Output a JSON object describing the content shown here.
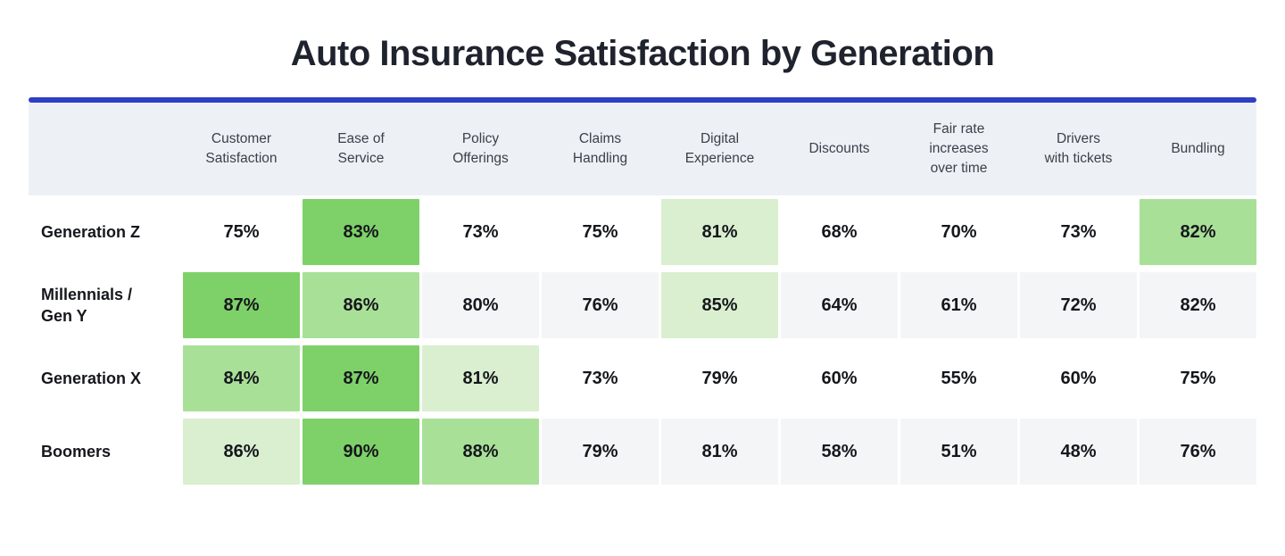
{
  "title": "Auto Insurance Satisfaction by Generation",
  "colors": {
    "accent_rule": "#2f3fc3",
    "header_bg": "#edf1f6",
    "row_stripe": "#f4f5f7",
    "green_rank1": "#7ed169",
    "green_rank2": "#a9e098",
    "green_rank3": "#d9efcf"
  },
  "table": {
    "columns": [
      {
        "label": "Customer Satisfaction",
        "lines": [
          "Customer",
          "Satisfaction"
        ]
      },
      {
        "label": "Ease of Service",
        "lines": [
          "Ease of",
          "Service"
        ]
      },
      {
        "label": "Policy Offerings",
        "lines": [
          "Policy",
          "Offerings"
        ]
      },
      {
        "label": "Claims Handling",
        "lines": [
          "Claims",
          "Handling"
        ]
      },
      {
        "label": "Digital Experience",
        "lines": [
          "Digital",
          "Experience"
        ]
      },
      {
        "label": "Discounts",
        "lines": [
          "Discounts"
        ]
      },
      {
        "label": "Fair rate increases over time",
        "lines": [
          "Fair rate",
          "increases",
          "over time"
        ]
      },
      {
        "label": "Drivers with tickets",
        "lines": [
          "Drivers",
          "with tickets"
        ]
      },
      {
        "label": "Bundling",
        "lines": [
          "Bundling"
        ]
      }
    ],
    "rows": [
      {
        "label": "Generation Z",
        "label_lines": [
          "Generation Z"
        ],
        "striped": false,
        "cells": [
          "75%",
          "83%",
          "73%",
          "75%",
          "81%",
          "68%",
          "70%",
          "73%",
          "82%"
        ],
        "tones": [
          0,
          1,
          0,
          0,
          3,
          0,
          0,
          0,
          2
        ]
      },
      {
        "label": "Millennials / Gen Y",
        "label_lines": [
          "Millennials /",
          "Gen Y"
        ],
        "striped": true,
        "cells": [
          "87%",
          "86%",
          "80%",
          "76%",
          "85%",
          "64%",
          "61%",
          "72%",
          "82%"
        ],
        "tones": [
          1,
          2,
          0,
          0,
          3,
          0,
          0,
          0,
          0
        ]
      },
      {
        "label": "Generation X",
        "label_lines": [
          "Generation X"
        ],
        "striped": false,
        "cells": [
          "84%",
          "87%",
          "81%",
          "73%",
          "79%",
          "60%",
          "55%",
          "60%",
          "75%"
        ],
        "tones": [
          2,
          1,
          3,
          0,
          0,
          0,
          0,
          0,
          0
        ]
      },
      {
        "label": "Boomers",
        "label_lines": [
          "Boomers"
        ],
        "striped": true,
        "cells": [
          "86%",
          "90%",
          "88%",
          "79%",
          "81%",
          "58%",
          "51%",
          "48%",
          "76%"
        ],
        "tones": [
          3,
          1,
          2,
          0,
          0,
          0,
          0,
          0,
          0
        ]
      }
    ]
  },
  "chart_data": {
    "type": "heatmap",
    "title": "Auto Insurance Satisfaction by Generation",
    "unit": "%",
    "columns": [
      "Customer Satisfaction",
      "Ease of Service",
      "Policy Offerings",
      "Claims Handling",
      "Digital Experience",
      "Discounts",
      "Fair rate increases over time",
      "Drivers with tickets",
      "Bundling"
    ],
    "rows": [
      "Generation Z",
      "Millennials / Gen Y",
      "Generation X",
      "Boomers"
    ],
    "values": [
      [
        75,
        83,
        73,
        75,
        81,
        68,
        70,
        73,
        82
      ],
      [
        87,
        86,
        80,
        76,
        85,
        64,
        61,
        72,
        82
      ],
      [
        84,
        87,
        81,
        73,
        79,
        60,
        55,
        60,
        75
      ],
      [
        86,
        90,
        88,
        79,
        81,
        58,
        51,
        48,
        76
      ]
    ],
    "legend": "Top 3 values in each row are shaded green; darker green = higher rank within the row"
  }
}
